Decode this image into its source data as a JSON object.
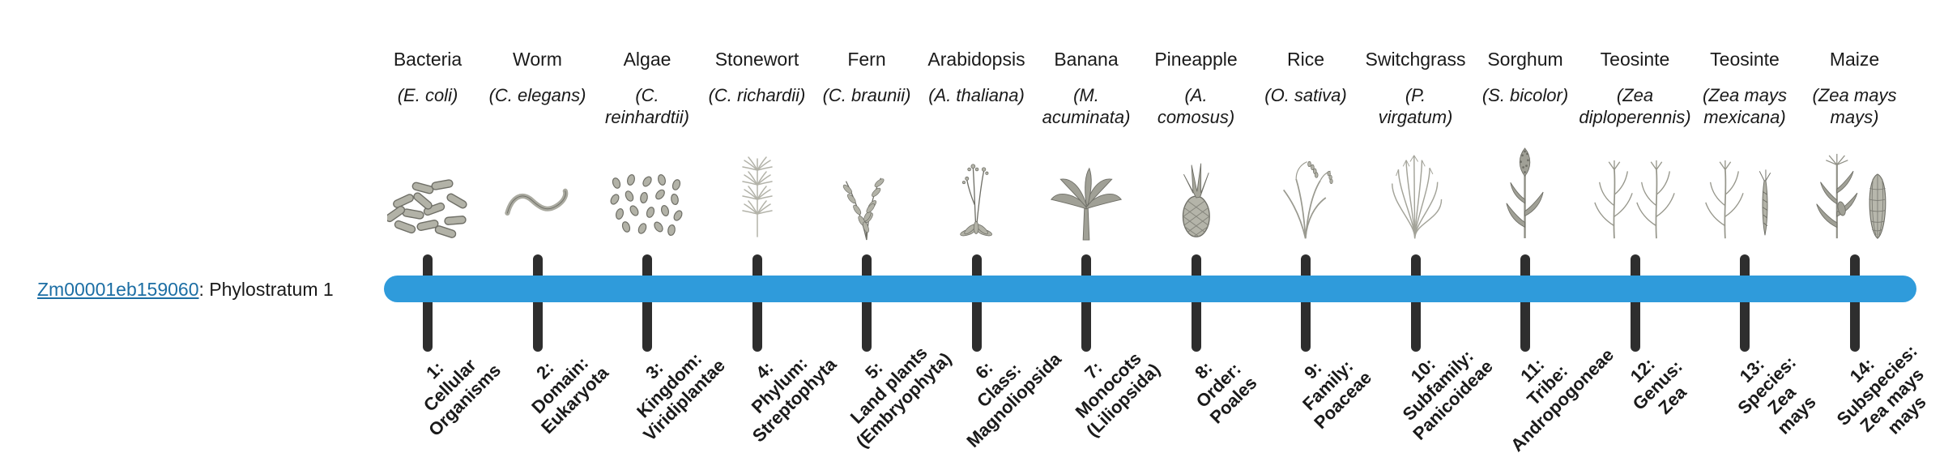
{
  "colors": {
    "bar": "#2f9bdb",
    "tick": "#2e2e2e",
    "link": "#1c6ea4",
    "illustration": "#9a9a90"
  },
  "gene": {
    "id": "Zm00001eb159060",
    "suffix": ": Phylostratum 1"
  },
  "organisms": [
    {
      "name": "Bacteria",
      "sci_lines": [
        "(E. coli)"
      ],
      "icon": "bacteria-icon"
    },
    {
      "name": "Worm",
      "sci_lines": [
        "(C. elegans)"
      ],
      "icon": "worm-icon"
    },
    {
      "name": "Algae",
      "sci_lines": [
        "(C.",
        "reinhardtii)"
      ],
      "icon": "algae-icon"
    },
    {
      "name": "Stonewort",
      "sci_lines": [
        "(C. richardii)"
      ],
      "icon": "stonewort-icon"
    },
    {
      "name": "Fern",
      "sci_lines": [
        "(C. braunii)"
      ],
      "icon": "fern-icon"
    },
    {
      "name": "Arabidopsis",
      "sci_lines": [
        "(A. thaliana)"
      ],
      "icon": "arabidopsis-icon"
    },
    {
      "name": "Banana",
      "sci_lines": [
        "(M.",
        "acuminata)"
      ],
      "icon": "banana-icon"
    },
    {
      "name": "Pineapple",
      "sci_lines": [
        "(A.",
        "comosus)"
      ],
      "icon": "pineapple-icon"
    },
    {
      "name": "Rice",
      "sci_lines": [
        "(O. sativa)"
      ],
      "icon": "rice-icon"
    },
    {
      "name": "Switchgrass",
      "sci_lines": [
        "(P.",
        "virgatum)"
      ],
      "icon": "switchgrass-icon"
    },
    {
      "name": "Sorghum",
      "sci_lines": [
        "(S. bicolor)"
      ],
      "icon": "sorghum-icon"
    },
    {
      "name": "Teosinte",
      "sci_lines": [
        "(Zea",
        "diploperennis)"
      ],
      "icon": "teosinte-icon"
    },
    {
      "name": "Teosinte",
      "sci_lines": [
        "(Zea mays",
        "mexicana)"
      ],
      "icon": "teosinte2-icon"
    },
    {
      "name": "Maize",
      "sci_lines": [
        "(Zea mays",
        "mays)"
      ],
      "icon": "maize-icon"
    }
  ],
  "strata": [
    {
      "lines": [
        "1:",
        "Cellular",
        "Organisms"
      ]
    },
    {
      "lines": [
        "2:",
        "Domain:",
        "Eukaryota"
      ]
    },
    {
      "lines": [
        "3:",
        "Kingdom:",
        "Viridiplantae"
      ]
    },
    {
      "lines": [
        "4:",
        "Phylum:",
        "Streptophyta"
      ]
    },
    {
      "lines": [
        "5:",
        "Land plants",
        "(Embryophyta)"
      ]
    },
    {
      "lines": [
        "6:",
        "Class:",
        "Magnoliopsida"
      ]
    },
    {
      "lines": [
        "7:",
        "Monocots",
        "(Liliopsida)"
      ]
    },
    {
      "lines": [
        "8:",
        "Order:",
        "Poales"
      ]
    },
    {
      "lines": [
        "9:",
        "Family:",
        "Poaceae"
      ]
    },
    {
      "lines": [
        "10:",
        "Subfamily:",
        "Panicoideae"
      ]
    },
    {
      "lines": [
        "11:",
        "Tribe:",
        "Andropogoneae"
      ]
    },
    {
      "lines": [
        "12:",
        "Genus:",
        "Zea"
      ]
    },
    {
      "lines": [
        "13:",
        "Species:",
        "Zea",
        "mays"
      ]
    },
    {
      "lines": [
        "14:",
        "Subspecies:",
        "Zea mays",
        "mays"
      ]
    }
  ]
}
